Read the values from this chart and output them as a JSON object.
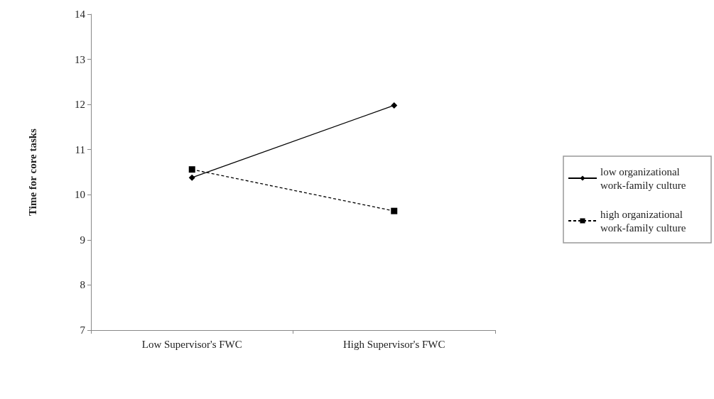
{
  "chart_data": {
    "type": "line",
    "ylabel": "Time for core tasks",
    "categories": [
      "Low Supervisor's FWC",
      "High Supervisor's FWC"
    ],
    "series": [
      {
        "name": "low organizational work-family culture",
        "color": "#000000",
        "values": [
          10.38,
          11.98
        ],
        "marker": "diamond",
        "line_style": "solid"
      },
      {
        "name": "high organizational work-family culture",
        "color": "#000000",
        "values": [
          10.56,
          9.64
        ],
        "marker": "square",
        "line_style": "dashed"
      }
    ],
    "ylim": [
      7,
      14
    ],
    "yticks": [
      7,
      8,
      9,
      10,
      11,
      12,
      13,
      14
    ],
    "grid": false,
    "legend": "right"
  }
}
